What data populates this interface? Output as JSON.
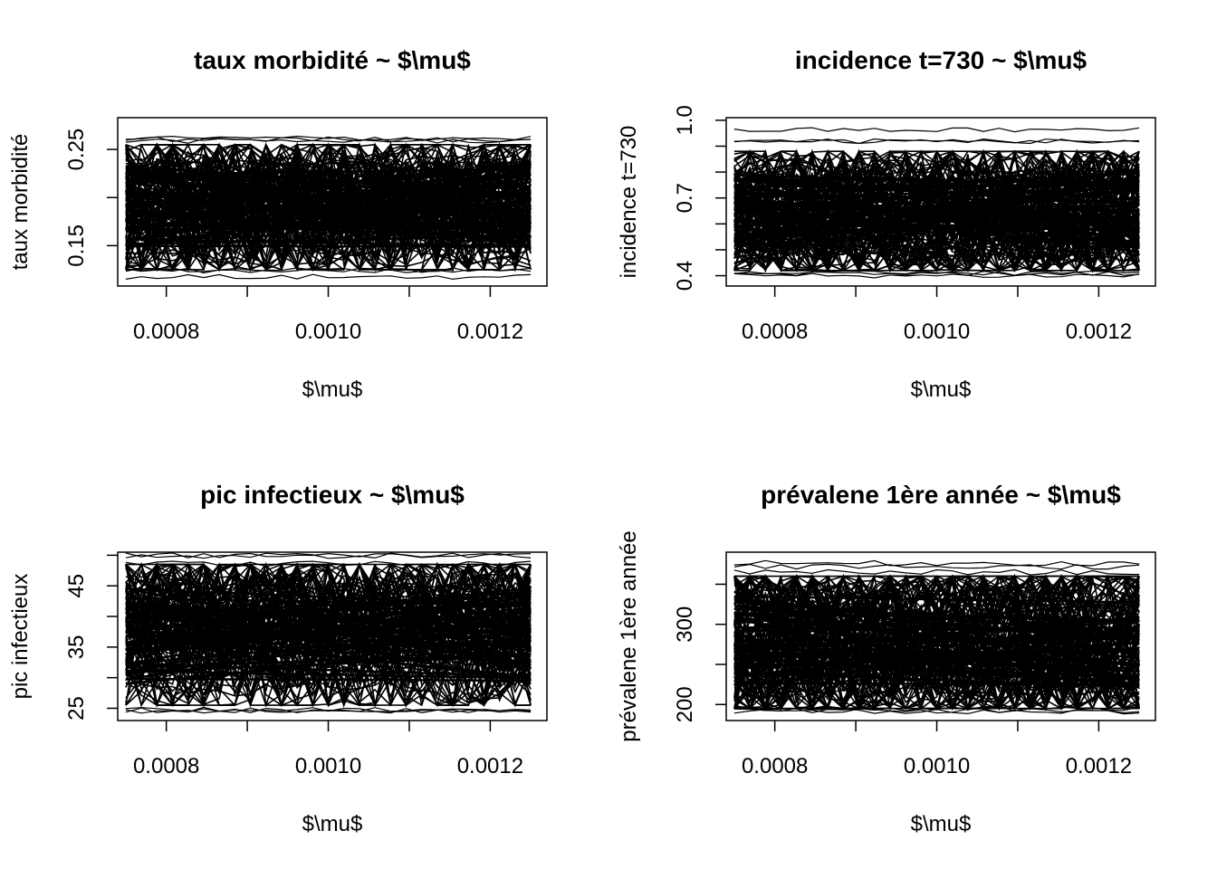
{
  "chart_data": [
    {
      "type": "line",
      "title": "taux morbidité ~ $\\mu$",
      "xlabel": "$\\mu$",
      "ylabel": "taux morbidité",
      "xlim": [
        0.00074,
        0.00127
      ],
      "ylim": [
        0.108,
        0.283
      ],
      "x_ticks": [
        "0.0008",
        "0.0010",
        "0.0012"
      ],
      "y_ticks": [
        "0.15",
        "0.25"
      ],
      "x_tick_values": [
        0.0008,
        0.0009,
        0.001,
        0.0011,
        0.0012
      ],
      "y_tick_values": [
        0.15,
        0.2,
        0.25
      ],
      "grid": false,
      "band": {
        "x": [
          0.00075,
          0.00125
        ],
        "y_low": 0.125,
        "y_high": 0.255,
        "y_extreme_low": 0.117,
        "y_extreme_high": 0.265
      },
      "series_count": 120
    },
    {
      "type": "line",
      "title": "incidence t=730 ~ $\\mu$",
      "xlabel": "$\\mu$",
      "ylabel": "incidence t=730",
      "xlim": [
        0.00074,
        0.00127
      ],
      "ylim": [
        0.36,
        1.01
      ],
      "x_ticks": [
        "0.0008",
        "0.0010",
        "0.0012"
      ],
      "y_ticks": [
        "0.4",
        "0.7",
        "1.0"
      ],
      "x_tick_values": [
        0.0008,
        0.0009,
        0.001,
        0.0011,
        0.0012
      ],
      "y_tick_values": [
        0.4,
        0.5,
        0.6,
        0.7,
        0.8,
        0.9,
        1.0
      ],
      "grid": false,
      "band": {
        "x": [
          0.00075,
          0.00125
        ],
        "y_low": 0.42,
        "y_high": 0.88,
        "y_extreme_low": 0.39,
        "y_extreme_high": 0.97
      },
      "series_count": 120
    },
    {
      "type": "line",
      "title": "pic infectieux ~ $\\mu$",
      "xlabel": "$\\mu$",
      "ylabel": "pic infectieux",
      "xlim": [
        0.00074,
        0.00127
      ],
      "ylim": [
        23.0,
        50.5
      ],
      "x_ticks": [
        "0.0008",
        "0.0010",
        "0.0012"
      ],
      "y_ticks": [
        "25",
        "35",
        "45"
      ],
      "x_tick_values": [
        0.0008,
        0.0009,
        0.001,
        0.0011,
        0.0012
      ],
      "y_tick_values": [
        25,
        30,
        35,
        40,
        45,
        50
      ],
      "grid": false,
      "band": {
        "x": [
          0.00075,
          0.00125
        ],
        "y_low": 25.5,
        "y_high": 48.5,
        "y_extreme_low": 24.0,
        "y_extreme_high": 50.0
      },
      "series_count": 120
    },
    {
      "type": "line",
      "title": "prévalene 1ère année ~ $\\mu$",
      "xlabel": "$\\mu$",
      "ylabel": "prévalene 1ère année",
      "xlim": [
        0.00074,
        0.00127
      ],
      "ylim": [
        180,
        390
      ],
      "x_ticks": [
        "0.0008",
        "0.0010",
        "0.0012"
      ],
      "y_ticks": [
        "200",
        "300"
      ],
      "x_tick_values": [
        0.0008,
        0.0009,
        0.001,
        0.0011,
        0.0012
      ],
      "y_tick_values": [
        200,
        250,
        300,
        350
      ],
      "grid": false,
      "band": {
        "x": [
          0.00075,
          0.00125
        ],
        "y_low": 195,
        "y_high": 360,
        "y_extreme_low": 190,
        "y_extreme_high": 385
      },
      "series_count": 120
    }
  ]
}
